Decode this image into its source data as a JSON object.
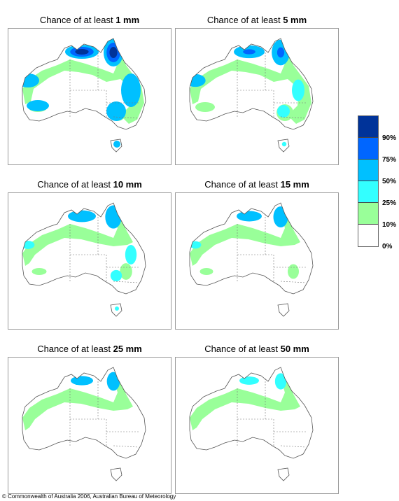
{
  "panels": [
    {
      "prefix": "Chance of at least ",
      "amount": "1 mm",
      "level": 6
    },
    {
      "prefix": "Chance of at least ",
      "amount": "5 mm",
      "level": 5
    },
    {
      "prefix": "Chance of at least ",
      "amount": "10 mm",
      "level": 4
    },
    {
      "prefix": "Chance of at least ",
      "amount": "15 mm",
      "level": 3
    },
    {
      "prefix": "Chance of at least ",
      "amount": "25 mm",
      "level": 2
    },
    {
      "prefix": "Chance of at least ",
      "amount": "50 mm",
      "level": 1
    }
  ],
  "legend": {
    "labels": [
      "90%",
      "75%",
      "50%",
      "25%",
      "10%",
      "0%"
    ],
    "colors": [
      "#003399",
      "#0066ff",
      "#00c0ff",
      "#33ffff",
      "#99ff99",
      "#ffffff"
    ]
  },
  "copyright": "© Commonwealth of Australia 2006, Australian Bureau of Meteorology"
}
